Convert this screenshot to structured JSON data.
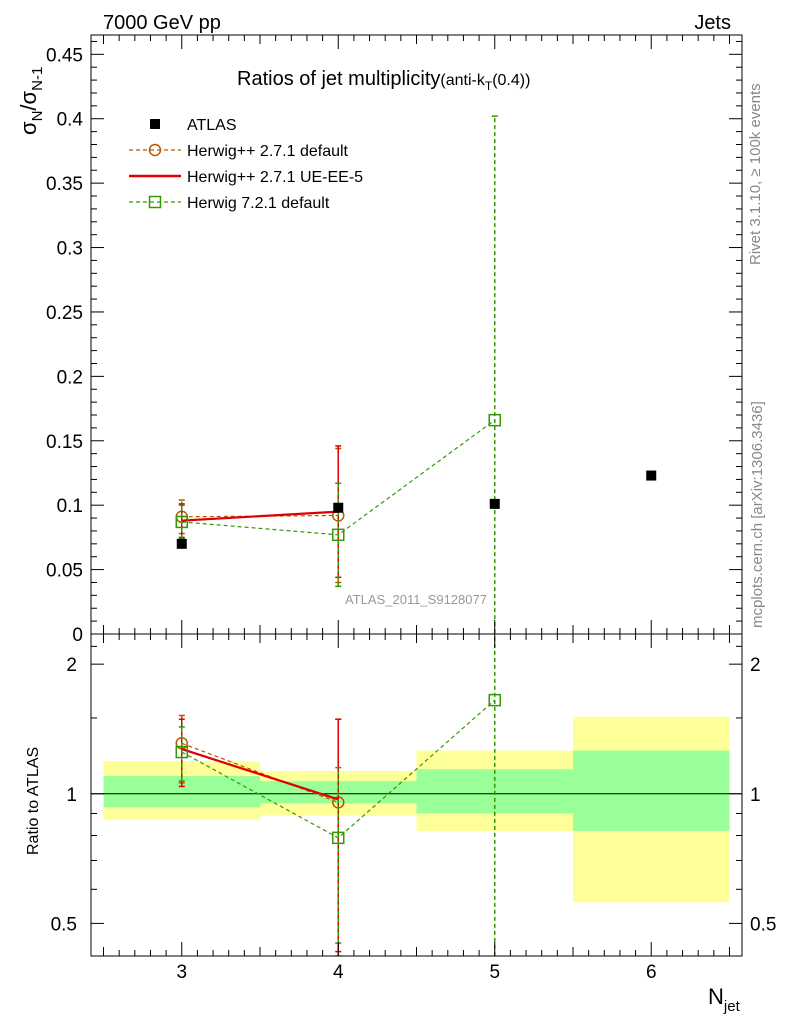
{
  "header": {
    "left": "7000 GeV pp",
    "right": "Jets"
  },
  "side_labels": {
    "rivet": "Rivet 3.1.10, ≥ 100k events",
    "mcplots": "mcplots.cern.ch [arXiv:1306.3436]"
  },
  "chart_data": [
    {
      "type": "scatter",
      "title_main": "Ratios of jet multiplicity",
      "title_sub_pre": "(anti-k",
      "title_sub_subscript": "T",
      "title_sub_post": "(0.4))",
      "ylabel_main": "σ",
      "ylabel_sub1": "N",
      "ylabel_mid": "/σ",
      "ylabel_sub2": "N-1",
      "watermark": "ATLAS_2011_S9128077",
      "xlim": [
        2.42,
        6.58
      ],
      "ylim": [
        0,
        0.465
      ],
      "y_ticks": [
        "0",
        "0.05",
        "0.1",
        "0.15",
        "0.2",
        "0.25",
        "0.3",
        "0.35",
        "0.4",
        "0.45"
      ],
      "y_tick_values": [
        0,
        0.05,
        0.1,
        0.15,
        0.2,
        0.25,
        0.3,
        0.35,
        0.4,
        0.45
      ],
      "legend_position": "top-left",
      "series": [
        {
          "name": "ATLAS",
          "style": "data",
          "color": "#000000",
          "points": [
            {
              "x": 3,
              "y": 0.07
            },
            {
              "x": 4,
              "y": 0.098
            },
            {
              "x": 5,
              "y": 0.101
            },
            {
              "x": 6,
              "y": 0.123
            }
          ]
        },
        {
          "name": "Herwig++ 2.7.1 default",
          "style": "circle-dashed",
          "color": "#b35900",
          "points": [
            {
              "x": 3,
              "y": 0.091,
              "err": 0.013
            },
            {
              "x": 4,
              "y": 0.092,
              "err": 0.052
            }
          ]
        },
        {
          "name": "Herwig++ 2.7.1 UE-EE-5",
          "style": "solid",
          "color": "#e00000",
          "points": [
            {
              "x": 3,
              "y": 0.088,
              "err": 0.013
            },
            {
              "x": 4,
              "y": 0.095,
              "err": 0.051
            }
          ]
        },
        {
          "name": "Herwig 7.2.1 default",
          "style": "square-dashed",
          "color": "#339900",
          "points": [
            {
              "x": 3,
              "y": 0.087,
              "err": 0.013
            },
            {
              "x": 4,
              "y": 0.077,
              "err": 0.04
            },
            {
              "x": 5,
              "y": 0.166,
              "err": 0.236
            }
          ]
        }
      ]
    },
    {
      "type": "scatter",
      "ylabel": "Ratio to ATLAS",
      "xlabel_main": "N",
      "xlabel_sub": "jet",
      "ylog": true,
      "ylim": [
        0.42,
        2.35
      ],
      "x_ticks": [
        "3",
        "4",
        "5",
        "6"
      ],
      "x_tick_values": [
        3,
        4,
        5,
        6
      ],
      "y_ticks": [
        "0.5",
        "1",
        "2"
      ],
      "y_tick_values": [
        0.5,
        1,
        2
      ],
      "bands": [
        {
          "x0": 2.5,
          "x1": 3.5,
          "inner": [
            0.93,
            1.1
          ],
          "outer": [
            0.87,
            1.19
          ]
        },
        {
          "x0": 3.5,
          "x1": 4.5,
          "inner": [
            0.95,
            1.07
          ],
          "outer": [
            0.89,
            1.13
          ]
        },
        {
          "x0": 4.5,
          "x1": 5.5,
          "inner": [
            0.9,
            1.14
          ],
          "outer": [
            0.82,
            1.26
          ]
        },
        {
          "x0": 5.5,
          "x1": 6.5,
          "inner": [
            0.82,
            1.26
          ],
          "outer": [
            0.56,
            1.51
          ]
        }
      ],
      "colors": {
        "inner": "#99ff99",
        "outer": "#ffff99"
      },
      "series": [
        {
          "name": "Herwig++ 2.7.1 default",
          "color": "#b35900",
          "style": "circle-dashed",
          "points": [
            {
              "x": 3,
              "y": 1.31,
              "lo": 1.06,
              "hi": 1.52
            },
            {
              "x": 4,
              "y": 0.955,
              "lo": 0.42,
              "hi": 1.49
            }
          ]
        },
        {
          "name": "Herwig++ 2.7.1 UE-EE-5",
          "color": "#e00000",
          "style": "solid",
          "points": [
            {
              "x": 3,
              "y": 1.27,
              "lo": 1.04,
              "hi": 1.49
            },
            {
              "x": 4,
              "y": 0.97,
              "lo": 0.43,
              "hi": 1.49
            }
          ]
        },
        {
          "name": "Herwig 7.2.1 default",
          "color": "#339900",
          "style": "square-dashed",
          "points": [
            {
              "x": 3,
              "y": 1.25,
              "lo": 1.07,
              "hi": 1.43
            },
            {
              "x": 4,
              "y": 0.79,
              "lo": 0.45,
              "hi": 1.15
            },
            {
              "x": 5,
              "y": 1.65,
              "lo": 0.3,
              "hi": 4.0
            }
          ]
        }
      ]
    }
  ]
}
